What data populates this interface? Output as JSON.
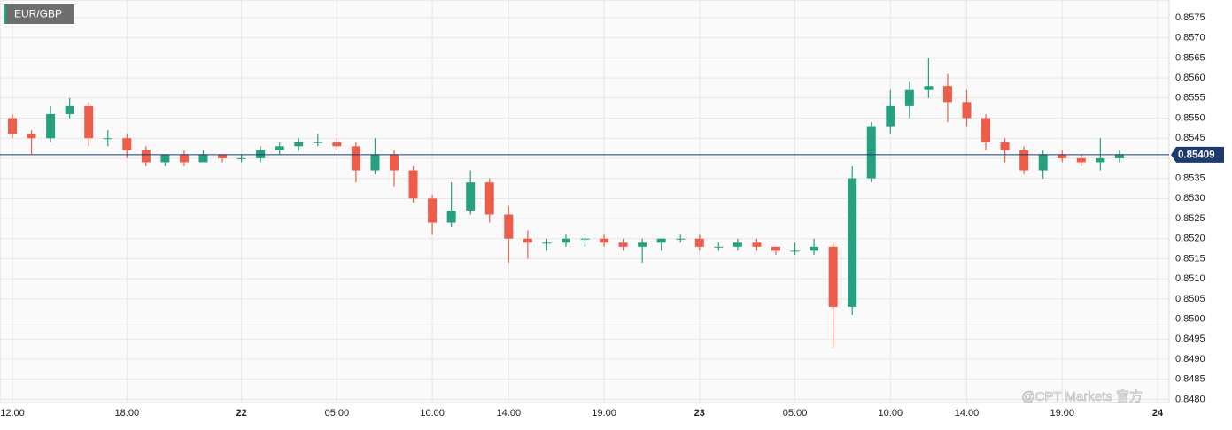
{
  "chart_data": {
    "type": "candlestick",
    "title": "EUR/GBP",
    "categories": [
      "12:00",
      null,
      null,
      null,
      null,
      null,
      "18:00",
      null,
      null,
      null,
      null,
      null,
      "22",
      null,
      null,
      null,
      null,
      "05:00",
      null,
      null,
      null,
      null,
      "10:00",
      null,
      null,
      null,
      "14:00",
      null,
      null,
      null,
      null,
      "19:00",
      null,
      null,
      null,
      null,
      "23",
      null,
      null,
      null,
      null,
      "05:00",
      null,
      null,
      null,
      null,
      "10:00",
      null,
      null,
      null,
      "14:00",
      null,
      null,
      null,
      null,
      "19:00",
      null,
      null,
      null
    ],
    "x_end_label": "24",
    "open": [
      0.855,
      0.8546,
      0.8545,
      0.8551,
      0.8553,
      0.8545,
      0.8545,
      0.8542,
      0.8539,
      0.8541,
      0.8539,
      0.8541,
      0.854,
      0.854,
      0.8542,
      0.8543,
      0.8544,
      0.8544,
      0.8543,
      0.8537,
      0.8541,
      0.8537,
      0.853,
      0.8524,
      0.8527,
      0.8534,
      0.8526,
      0.852,
      0.8519,
      0.8519,
      0.852,
      0.852,
      0.8519,
      0.8518,
      0.8519,
      0.852,
      0.852,
      0.8518,
      0.8518,
      0.8519,
      0.8518,
      0.8517,
      0.8517,
      0.8518,
      0.8503,
      0.8535,
      0.8548,
      0.8553,
      0.8557,
      0.8558,
      0.8554,
      0.855,
      0.8544,
      0.8542,
      0.8537,
      0.8541,
      0.854,
      0.8539,
      0.854
    ],
    "high": [
      0.8551,
      0.8547,
      0.8553,
      0.8555,
      0.8554,
      0.8547,
      0.8546,
      0.8543,
      0.8541,
      0.8542,
      0.8542,
      0.8541,
      0.8541,
      0.8543,
      0.8544,
      0.8545,
      0.8546,
      0.8545,
      0.8544,
      0.8545,
      0.8542,
      0.8538,
      0.8531,
      0.8534,
      0.8537,
      0.8535,
      0.8528,
      0.8522,
      0.852,
      0.8521,
      0.8521,
      0.8521,
      0.852,
      0.852,
      0.852,
      0.8521,
      0.8521,
      0.8519,
      0.852,
      0.852,
      0.8518,
      0.8519,
      0.852,
      0.8519,
      0.8538,
      0.8549,
      0.8557,
      0.8559,
      0.8565,
      0.8561,
      0.8557,
      0.8551,
      0.8545,
      0.8543,
      0.8542,
      0.8542,
      0.8541,
      0.8545,
      0.8542
    ],
    "low": [
      0.8545,
      0.8541,
      0.8544,
      0.855,
      0.8543,
      0.8543,
      0.854,
      0.8538,
      0.8538,
      0.8538,
      0.8539,
      0.8539,
      0.8539,
      0.8539,
      0.8541,
      0.8542,
      0.8543,
      0.8542,
      0.8534,
      0.8536,
      0.8533,
      0.8529,
      0.8521,
      0.8523,
      0.8526,
      0.8524,
      0.8514,
      0.8515,
      0.8517,
      0.8518,
      0.8518,
      0.8518,
      0.8517,
      0.8514,
      0.8517,
      0.8519,
      0.8517,
      0.8517,
      0.8517,
      0.8517,
      0.8516,
      0.8516,
      0.8516,
      0.8493,
      0.8501,
      0.8534,
      0.8546,
      0.855,
      0.8555,
      0.8549,
      0.8548,
      0.8542,
      0.8539,
      0.8536,
      0.8535,
      0.8539,
      0.8538,
      0.8537,
      0.8539
    ],
    "close": [
      0.8546,
      0.8545,
      0.8551,
      0.8553,
      0.8545,
      0.8545,
      0.8542,
      0.8539,
      0.8541,
      0.8539,
      0.8541,
      0.854,
      0.854,
      0.8542,
      0.8543,
      0.8544,
      0.8544,
      0.8543,
      0.8537,
      0.8541,
      0.8537,
      0.853,
      0.8524,
      0.8527,
      0.8534,
      0.8526,
      0.852,
      0.8519,
      0.8519,
      0.852,
      0.852,
      0.8519,
      0.8518,
      0.8519,
      0.852,
      0.852,
      0.8518,
      0.8518,
      0.8519,
      0.8518,
      0.8517,
      0.8517,
      0.8518,
      0.8503,
      0.8535,
      0.8548,
      0.8553,
      0.8557,
      0.8558,
      0.8554,
      0.855,
      0.8544,
      0.8542,
      0.8537,
      0.8541,
      0.854,
      0.8539,
      0.854,
      0.8541
    ],
    "up_color": "#26a17f",
    "down_color": "#ee5d4a",
    "last_price": 0.85409,
    "last_price_color": "#1d3b6e",
    "ylim": [
      0.84792,
      0.85794
    ],
    "yticks": [
      {
        "value": 0.848,
        "label": "0.8480"
      },
      0.8485,
      {
        "value": 0.849,
        "label": "0.8490"
      },
      0.8495,
      {
        "value": 0.85,
        "label": "0.8500"
      },
      0.8505,
      {
        "value": 0.851,
        "label": "0.8510"
      },
      0.8515,
      {
        "value": 0.852,
        "label": "0.8520"
      },
      0.8525,
      {
        "value": 0.853,
        "label": "0.8530"
      },
      0.8535,
      {
        "value": 0.854,
        "label": "0.8540"
      },
      0.8545,
      {
        "value": 0.855,
        "label": "0.8550"
      },
      0.8555,
      {
        "value": 0.856,
        "label": "0.8560"
      },
      0.8565,
      {
        "value": 0.857,
        "label": "0.8570"
      },
      0.8575
    ],
    "grid": true,
    "watermark": "@CPT Markets 官方"
  }
}
